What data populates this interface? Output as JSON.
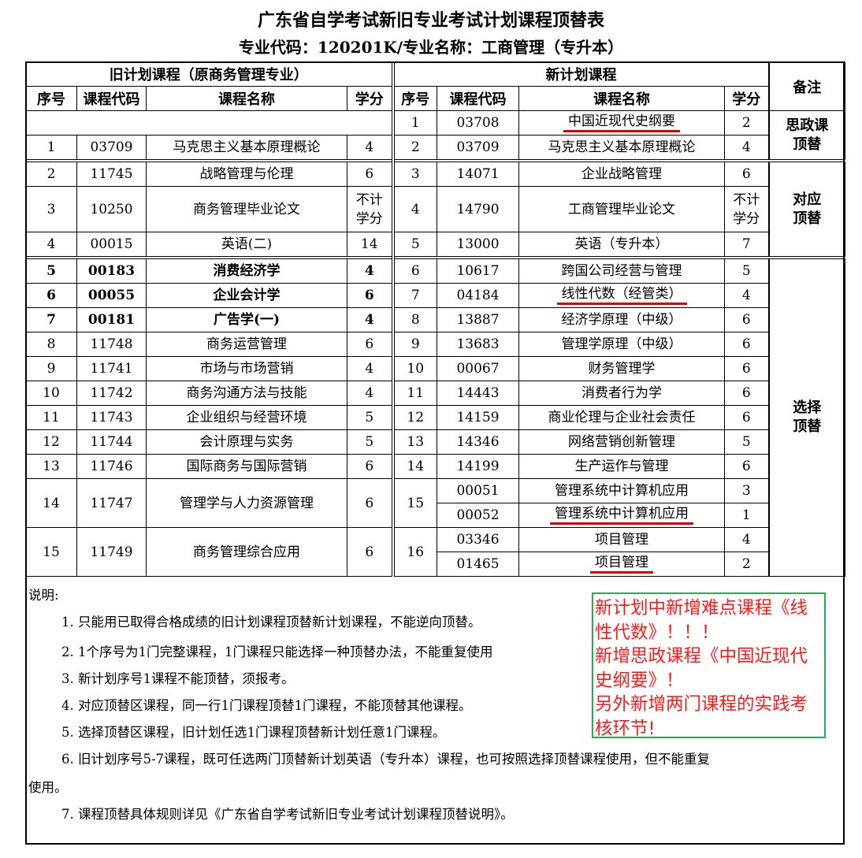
{
  "title": "广东省自学考试新旧专业考试计划课程顶替表",
  "subtitle": "专业代码：120201K/专业名称：工商管理（专升本）",
  "table": {
    "old_header": "旧计划课程（原商务管理专业）",
    "new_header": "新计划课程",
    "remark_header": "备注",
    "columns": {
      "no": "序号",
      "code": "课程代码",
      "name": "课程名称",
      "credit": "学分"
    },
    "highlight_color": "#e00000",
    "rows": [
      {
        "old": {
          "empty": true
        },
        "new": {
          "no": "1",
          "code": "03708",
          "name": "中国近现代史纲要",
          "credit": "2",
          "underline": true
        },
        "remark": {
          "text": "思政课顶替",
          "span": 2
        }
      },
      {
        "old": {
          "no": "1",
          "code": "03709",
          "name": "马克思主义基本原理概论",
          "credit": "4"
        },
        "new": {
          "no": "2",
          "code": "03709",
          "name": "马克思主义基本原理概论",
          "credit": "4"
        }
      },
      {
        "group_start": true,
        "old": {
          "no": "2",
          "code": "11745",
          "name": "战略管理与伦理",
          "credit": "6"
        },
        "new": {
          "no": "3",
          "code": "14071",
          "name": "企业战略管理",
          "credit": "6"
        },
        "remark": {
          "text": "对应顶替",
          "span": 3
        }
      },
      {
        "tall": true,
        "old": {
          "no": "3",
          "code": "10250",
          "name": "商务管理毕业论文",
          "credit": "不计学分"
        },
        "new": {
          "no": "4",
          "code": "14790",
          "name": "工商管理毕业论文",
          "credit": "不计学分"
        }
      },
      {
        "old": {
          "no": "4",
          "code": "00015",
          "name": "英语(二)",
          "credit": "14"
        },
        "new": {
          "no": "5",
          "code": "13000",
          "name": "英语（专升本）",
          "credit": "7"
        }
      },
      {
        "group_start": true,
        "old": {
          "no": "5",
          "code": "00183",
          "name": "消费经济学",
          "credit": "4",
          "bold": true
        },
        "new": {
          "no": "6",
          "code": "10617",
          "name": "跨国公司经营与管理",
          "credit": "5"
        },
        "remark": {
          "text": "选择顶替",
          "span": 13
        }
      },
      {
        "old": {
          "no": "6",
          "code": "00055",
          "name": "企业会计学",
          "credit": "6",
          "bold": true
        },
        "new": {
          "no": "7",
          "code": "04184",
          "name": "线性代数（经管类）",
          "credit": "4",
          "underline": true
        }
      },
      {
        "old": {
          "no": "7",
          "code": "00181",
          "name": "广告学(一)",
          "credit": "4",
          "bold": true
        },
        "new": {
          "no": "8",
          "code": "13887",
          "name": "经济学原理（中级）",
          "credit": "6"
        }
      },
      {
        "old": {
          "no": "8",
          "code": "11748",
          "name": "商务运营管理",
          "credit": "6"
        },
        "new": {
          "no": "9",
          "code": "13683",
          "name": "管理学原理（中级）",
          "credit": "6"
        }
      },
      {
        "old": {
          "no": "9",
          "code": "11741",
          "name": "市场与市场营销",
          "credit": "4"
        },
        "new": {
          "no": "10",
          "code": "00067",
          "name": "财务管理学",
          "credit": "6"
        }
      },
      {
        "old": {
          "no": "10",
          "code": "11742",
          "name": "商务沟通方法与技能",
          "credit": "4"
        },
        "new": {
          "no": "11",
          "code": "14443",
          "name": "消费者行为学",
          "credit": "6"
        }
      },
      {
        "old": {
          "no": "11",
          "code": "11743",
          "name": "企业组织与经营环境",
          "credit": "5"
        },
        "new": {
          "no": "12",
          "code": "14159",
          "name": "商业伦理与企业社会责任",
          "credit": "6"
        }
      },
      {
        "old": {
          "no": "12",
          "code": "11744",
          "name": "会计原理与实务",
          "credit": "5"
        },
        "new": {
          "no": "13",
          "code": "14346",
          "name": "网络营销创新管理",
          "credit": "5"
        }
      },
      {
        "old": {
          "no": "13",
          "code": "11746",
          "name": "国际商务与国际营销",
          "credit": "6"
        },
        "new": {
          "no": "14",
          "code": "14199",
          "name": "生产运作与管理",
          "credit": "6"
        }
      },
      {
        "old": {
          "no": "14",
          "code": "11747",
          "name": "管理学与人力资源管理",
          "credit": "6",
          "span": 2
        },
        "new": {
          "no": "15",
          "no_span": 2,
          "code": "00051",
          "name": "管理系统中计算机应用",
          "credit": "3"
        }
      },
      {
        "new": {
          "code": "00052",
          "name": "管理系统中计算机应用",
          "credit": "1",
          "underline": true
        }
      },
      {
        "old": {
          "no": "15",
          "code": "11749",
          "name": "商务管理综合应用",
          "credit": "6",
          "span": 2
        },
        "new": {
          "no": "16",
          "no_span": 2,
          "code": "03346",
          "name": "项目管理",
          "credit": "4"
        }
      },
      {
        "new": {
          "code": "01465",
          "name": "项目管理",
          "credit": "2",
          "underline": true
        }
      }
    ]
  },
  "notes": {
    "heading": "说明:",
    "items": [
      "1. 只能用已取得合格成绩的旧计划课程顶替新计划课程，不能逆向顶替。",
      "2. 1个序号为1门完整课程，1门课程只能选择一种顶替办法，不能重复使用",
      "3. 新计划序号1课程不能顶替，须报考。",
      "4. 对应顶替区课程，同一行1门课程顶替1门课程，不能顶替其他课程。",
      "5. 选择顶替区课程，旧计划任选1门课程顶替新计划任意1门课程。",
      "6. 旧计划序号5-7课程，既可任选两门顶替新计划英语（专升本）课程，也可按照选择顶替课程使用，但不能重复",
      "7. 课程顶替具体规则详见《广东省自学考试新旧专业考试计划课程顶替说明》。"
    ],
    "item6_continuation": "使用。"
  },
  "annotation": {
    "lines": [
      "新计划中新增难点课程《线",
      "性代数》！！！",
      "新增思政课程《中国近现代",
      "史纲要》！",
      "另外新增两门课程的实践考",
      "核环节!"
    ],
    "text_color": "#ff1a1a",
    "border_color": "#22b04b"
  }
}
